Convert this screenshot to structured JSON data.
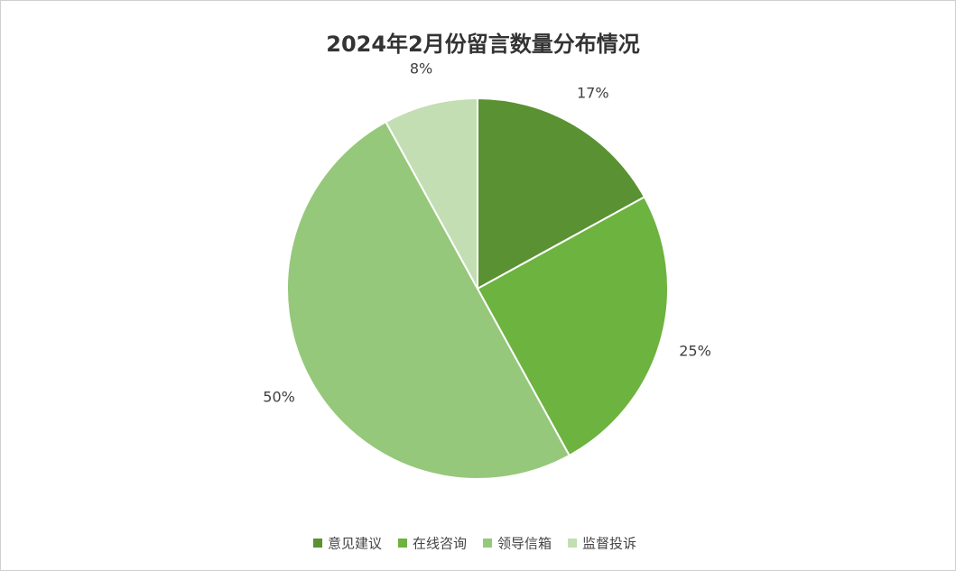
{
  "chart_data": {
    "type": "pie",
    "title": "2024年2月份留言数量分布情况",
    "categories": [
      "意见建议",
      "在线咨询",
      "领导信箱",
      "监督投诉"
    ],
    "values": [
      17,
      25,
      50,
      8
    ],
    "value_labels": [
      "17%",
      "25%",
      "50%",
      "8%"
    ],
    "colors": [
      "#5a9132",
      "#6db33f",
      "#95c87a",
      "#c3deb3"
    ],
    "legend": "bottom"
  }
}
